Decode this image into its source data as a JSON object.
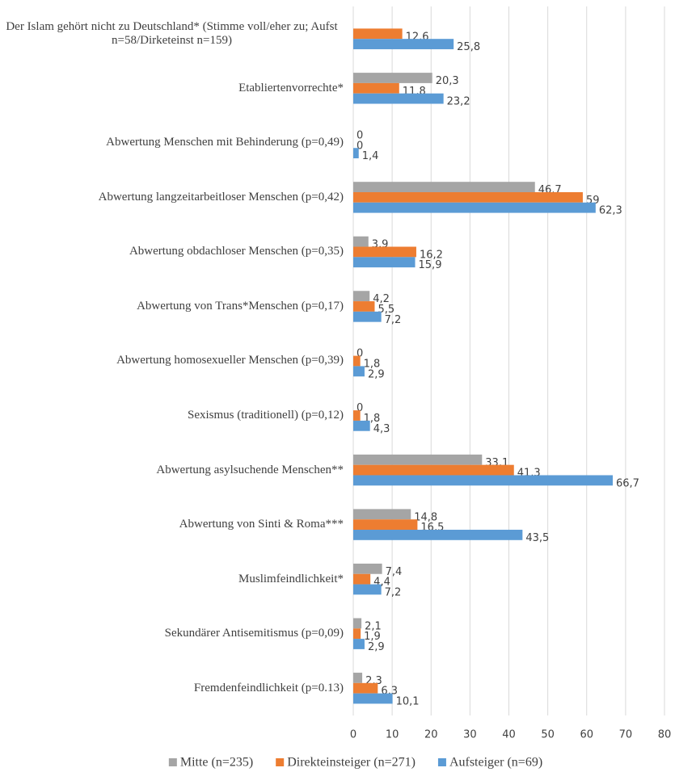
{
  "chart_data": {
    "type": "hbar",
    "categories": [
      "Der Islam gehört nicht zu Deutschland* (Stimme voll/eher zu; Aufst n=58/Dirketeinst n=159)",
      "Etabliertenvorrechte*",
      "Abwertung Menschen mit Behinderung (p=0,49)",
      "Abwertung langzeitarbeitloser Menschen (p=0,42)",
      "Abwertung obdachloser Menschen (p=0,35)",
      "Abwertung von Trans*Menschen (p=0,17)",
      "Abwertung homosexueller Menschen (p=0,39)",
      "Sexismus (traditionell) (p=0,12)",
      "Abwertung asylsuchende Menschen**",
      "Abwertung von Sinti & Roma***",
      "Muslimfeindlichkeit*",
      "Sekundärer Antisemitismus (p=0,09)",
      "Fremdenfeindlichkeit (p=0.13)"
    ],
    "series": [
      {
        "name": "Mitte (n=235)",
        "color": "#a5a5a5",
        "values": [
          null,
          20.3,
          0,
          46.7,
          3.9,
          4.2,
          0,
          0,
          33.1,
          14.8,
          7.4,
          2.1,
          2.3
        ],
        "value_labels": [
          null,
          "20,3",
          "0",
          "46,7",
          "3,9",
          "4,2",
          "0",
          "0",
          "33,1",
          "14,8",
          "7,4",
          "2,1",
          "2,3"
        ]
      },
      {
        "name": "Direkteinsteiger (n=271)",
        "color": "#ed7d31",
        "values": [
          12.6,
          11.8,
          0,
          59,
          16.2,
          5.5,
          1.8,
          1.8,
          41.3,
          16.5,
          4.4,
          1.9,
          6.3
        ],
        "value_labels": [
          "12,6",
          "11,8",
          "0",
          "59",
          "16,2",
          "5,5",
          "1,8",
          "1,8",
          "41,3",
          "16,5",
          "4,4",
          "1,9",
          "6,3"
        ]
      },
      {
        "name": "Aufsteiger (n=69)",
        "color": "#5b9bd5",
        "values": [
          25.8,
          23.2,
          1.4,
          62.3,
          15.9,
          7.2,
          2.9,
          4.3,
          66.7,
          43.5,
          7.2,
          2.9,
          10.1
        ],
        "value_labels": [
          "25,8",
          "23,2",
          "1,4",
          "62,3",
          "15,9",
          "7,2",
          "2,9",
          "4,3",
          "66,7",
          "43,5",
          "7,2",
          "2,9",
          "10,1"
        ]
      }
    ],
    "xlim": [
      0,
      80
    ],
    "xticks": [
      0,
      10,
      20,
      30,
      40,
      50,
      60,
      70,
      80
    ],
    "grid": true,
    "legend": "bottom"
  }
}
